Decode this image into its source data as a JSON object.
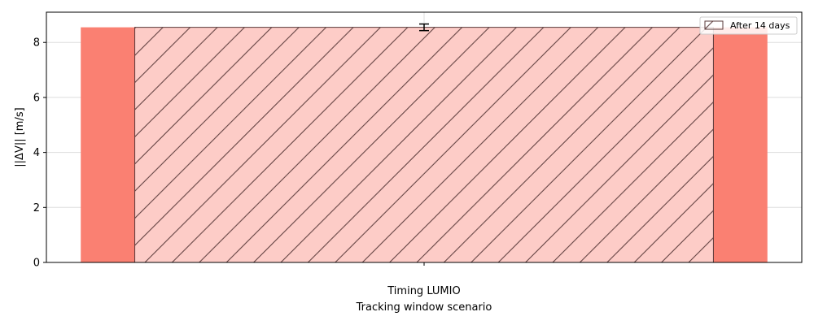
{
  "chart_data": {
    "type": "bar",
    "categories": [
      "Timing LUMIO"
    ],
    "series": [
      {
        "values": [
          8.55
        ],
        "color": "#FA8072"
      },
      {
        "name": "After 14 days",
        "values": [
          8.55
        ],
        "error": [
          0.12
        ],
        "color": "#FA8072",
        "alpha": 0.4,
        "hatch": "diagonal"
      }
    ],
    "xlabel": "Tracking window scenario",
    "ylabel": "||ΔV|| [m/s]",
    "ylim": [
      0,
      9.1
    ],
    "yticks": [
      0,
      2,
      4,
      6,
      8
    ],
    "grid": true,
    "legend": "top-right"
  }
}
